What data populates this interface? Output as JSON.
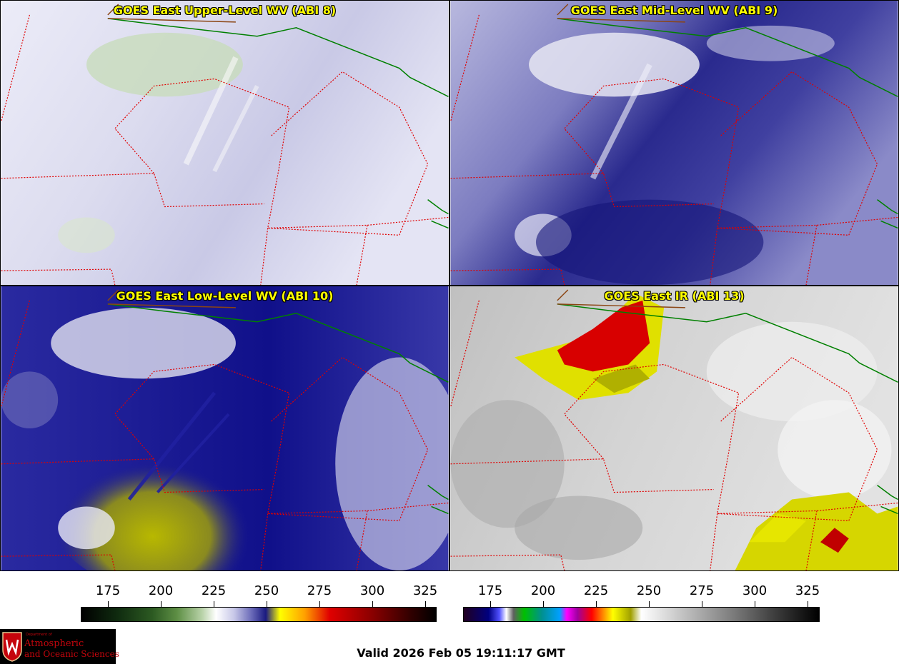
{
  "panels": [
    {
      "id": "upper",
      "title": "GOES East Upper-Level WV (ABI 8)"
    },
    {
      "id": "mid",
      "title": "GOES East Mid-Level WV (ABI 9)"
    },
    {
      "id": "low",
      "title": "GOES East Low-Level WV (ABI 10)"
    },
    {
      "id": "ir",
      "title": "GOES East IR (ABI 13)"
    }
  ],
  "colorbars": {
    "wv": {
      "ticks": [
        "175",
        "200",
        "225",
        "250",
        "275",
        "300",
        "325"
      ]
    },
    "ir": {
      "ticks": [
        "175",
        "200",
        "225",
        "250",
        "275",
        "300",
        "325"
      ]
    }
  },
  "logo": {
    "department": "Department of",
    "line1": "Atmospheric",
    "line2": "and Oceanic Sciences"
  },
  "valid_time": "Valid 2026 Feb 05 19:11:17 GMT"
}
